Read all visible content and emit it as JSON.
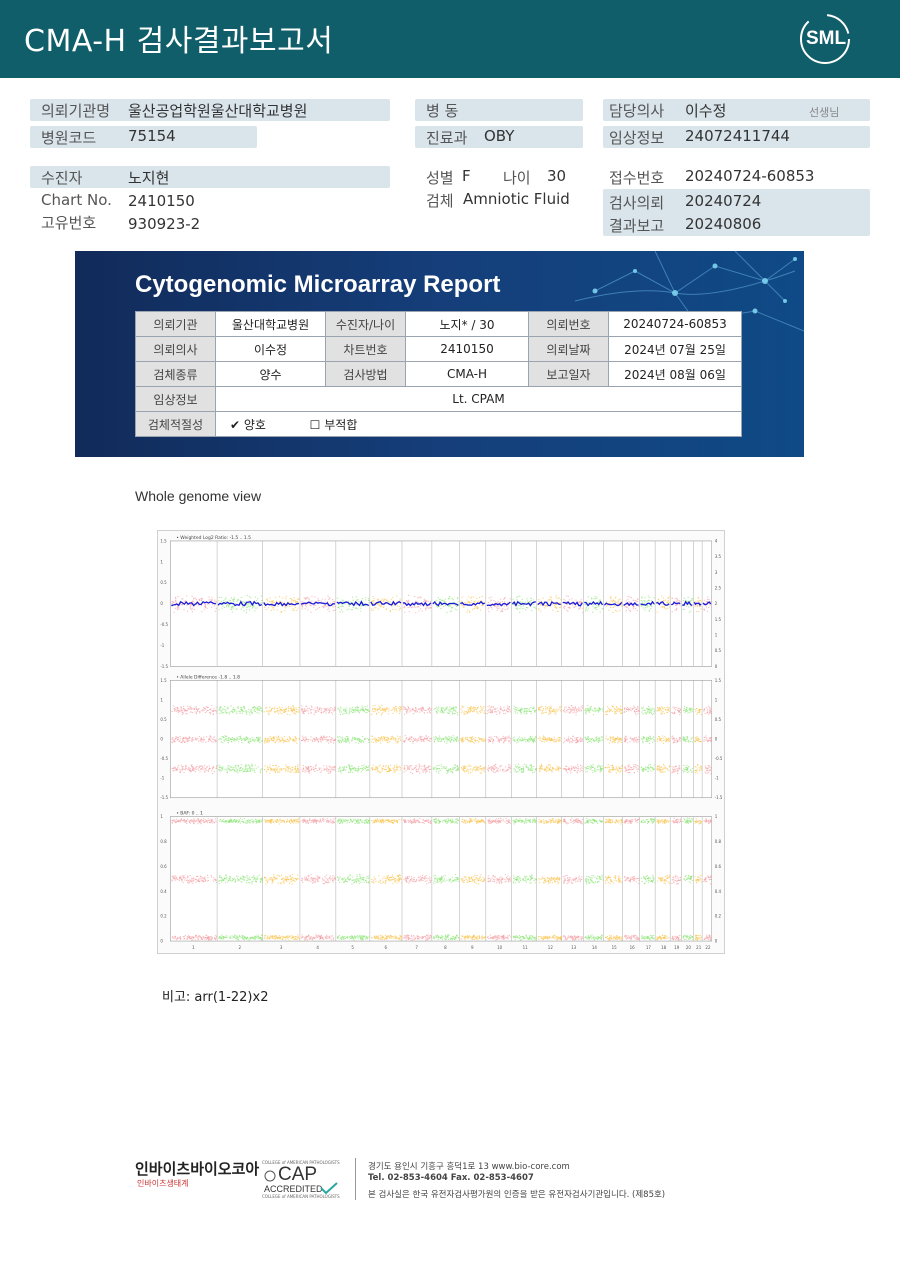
{
  "header": {
    "title": "CMA-H 검사결과보고서",
    "logo": "SML"
  },
  "info": {
    "institution_label": "의뢰기관명",
    "institution": "울산공업학원울산대학교병원",
    "hospital_code_label": "병원코드",
    "hospital_code": "75154",
    "ward_label": "병  동",
    "ward": "",
    "department_label": "진료과",
    "department": "OBY",
    "doctor_label": "담당의사",
    "doctor": "이수정",
    "doctor_suffix": "선생님",
    "clinical_label": "임상정보",
    "clinical": "24072411744",
    "patient_label": "수진자",
    "patient": "노지현",
    "chart_label": "Chart No.",
    "chart": "2410150",
    "unique_label": "고유번호",
    "unique": "930923-2",
    "sex_label": "성별",
    "sex": "F",
    "age_label": "나이",
    "age": "30",
    "specimen_label": "검체",
    "specimen": "Amniotic Fluid",
    "receipt_label": "접수번호",
    "receipt": "20240724-60853",
    "request_label": "검사의뢰",
    "request": "20240724",
    "report_label": "결과보고",
    "report": "20240806"
  },
  "report_banner": {
    "title": "Cytogenomic Microarray Report",
    "rows": [
      [
        "의뢰기관",
        "울산대학교병원",
        "수진자/나이",
        "노지* / 30",
        "의뢰번호",
        "20240724-60853"
      ],
      [
        "의뢰의사",
        "이수정",
        "차트번호",
        "2410150",
        "의뢰날짜",
        "2024년 07월 25일"
      ],
      [
        "검체종류",
        "양수",
        "검사방법",
        "CMA-H",
        "보고일자",
        "2024년 08월 06일"
      ]
    ],
    "clinical_label": "임상정보",
    "clinical_value": "Lt. CPAM",
    "adequacy_label": "검체적절성",
    "adequacy_good": "양호",
    "adequacy_bad": "부적합",
    "check_mark": "✔",
    "empty_box": "☐"
  },
  "genome": {
    "title": "Whole genome view",
    "panel1_label": "Weighted Log2 Ratio: -1.5 .. 1.5",
    "panel2_label": "Allele Difference -1.8 .. 1.8",
    "panel3_label": "BAF: 0 .. 1",
    "chromosomes": [
      "1",
      "2",
      "3",
      "4",
      "5",
      "6",
      "7",
      "8",
      "9",
      "10",
      "11",
      "12",
      "13",
      "14",
      "15",
      "16",
      "17",
      "18",
      "19",
      "20",
      "21",
      "22"
    ],
    "chrom_lengths": [
      249,
      243,
      198,
      191,
      181,
      171,
      159,
      146,
      141,
      136,
      135,
      133,
      115,
      107,
      102,
      90,
      83,
      80,
      59,
      64,
      47,
      51
    ],
    "chrom_colors": [
      "#f4a3a8",
      "#8fe67a",
      "#f8c451",
      "#f4a3a8",
      "#8fe67a",
      "#f8c451",
      "#f4a3a8",
      "#8fe67a",
      "#f8c451",
      "#f4a3a8",
      "#8fe67a",
      "#f8c451",
      "#f4a3a8",
      "#8fe67a",
      "#f8c451",
      "#f4a3a8",
      "#8fe67a",
      "#f8c451",
      "#f4a3a8",
      "#8fe67a",
      "#f8c451",
      "#f4a3a8"
    ],
    "panel1_left_ticks": [
      "1.5",
      "1",
      "0.5",
      "0",
      "-0.5",
      "-1",
      "-1.5"
    ],
    "panel1_right_ticks": [
      "4",
      "3.5",
      "3",
      "2.5",
      "2",
      "1.5",
      "1",
      "0.5",
      "0"
    ],
    "panel2_left_ticks": [
      "1.5",
      "1",
      "0.5",
      "0",
      "-0.5",
      "-1",
      "-1.5"
    ],
    "panel2_right_ticks": [
      "1.5",
      "1",
      "0.5",
      "0",
      "-0.5",
      "-1",
      "-1.5"
    ],
    "panel3_left_ticks": [
      "1",
      "0.8",
      "0.6",
      "0.4",
      "0.2",
      "0"
    ],
    "panel3_right_ticks": [
      "1",
      "0.8",
      "0.6",
      "0.4",
      "0.2",
      "0"
    ]
  },
  "note": "비고: arr(1-22)x2",
  "footer": {
    "company": "인바이츠바이오코아",
    "company_sub": "인바이츠생태계",
    "cap_top": "COLLEGE of AMERICAN PATHOLOGISTS",
    "cap_mark": "CAP",
    "cap_accredited": "ACCREDITED",
    "cap_bottom": "COLLEGE of AMERICAN PATHOLOGISTS",
    "address": "경기도 용인시 기흥구 흥덕1로 13   www.bio-core.com",
    "phone": "Tel. 02-853-4604   Fax. 02-853-4607",
    "cert": "본 검사실은 한국 유전자검사평가원의 인증을 받은 유전자검사기관입니다. (제85호)"
  }
}
